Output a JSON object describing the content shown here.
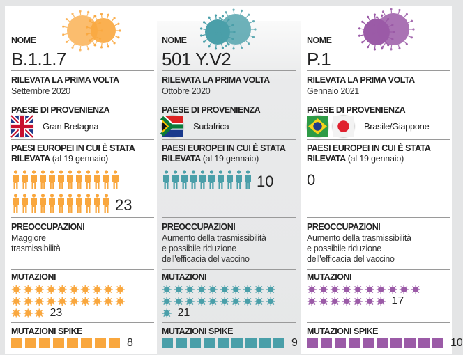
{
  "labels": {
    "name": "NOME",
    "first_detected": "RILEVATA LA PRIMA VOLTA",
    "origin": "PAESE DI PROVENIENZA",
    "eu_countries_line1": "PAESI EUROPEI IN CUI È STATA",
    "eu_countries_line2": "RILEVATA",
    "eu_countries_note": "(al 19 gennaio)",
    "concerns": "PREOCCUPAZIONI",
    "mutations": "MUTAZIONI",
    "spike_mutations": "MUTAZIONI SPIKE"
  },
  "variants": [
    {
      "name": "B.1.1.7",
      "color": "#f9a73e",
      "date": "Settembre 2020",
      "flags": [
        "uk-flag-icon"
      ],
      "country": "Gran Bretagna",
      "eu_countries": 23,
      "eu_countries_label": "23",
      "concerns": [
        "Maggiore",
        "trasmissibilità"
      ],
      "mutations": 23,
      "mutations_label": "23",
      "spike": 8,
      "spike_label": "8"
    },
    {
      "name": "501 Y.V2",
      "color": "#4a9fa9",
      "date": "Ottobre 2020",
      "flags": [
        "south-africa-flag-icon"
      ],
      "country": "Sudafrica",
      "eu_countries": 10,
      "eu_countries_label": "10",
      "concerns": [
        "Aumento della trasmissibilità",
        "e possibile riduzione",
        "dell'efficacia del vaccino"
      ],
      "mutations": 21,
      "mutations_label": "21",
      "spike": 9,
      "spike_label": "9"
    },
    {
      "name": "P.1",
      "color": "#9b5ba7",
      "date": "Gennaio 2021",
      "flags": [
        "brazil-flag-icon",
        "japan-flag-icon"
      ],
      "country": "Brasile/Giappone",
      "eu_countries": 0,
      "eu_countries_label": "0",
      "concerns": [
        "Aumento della trasmissibilità",
        "e possibile riduzione",
        "dell'efficacia del vaccino"
      ],
      "mutations": 17,
      "mutations_label": "17",
      "spike": 10,
      "spike_label": "10"
    }
  ]
}
